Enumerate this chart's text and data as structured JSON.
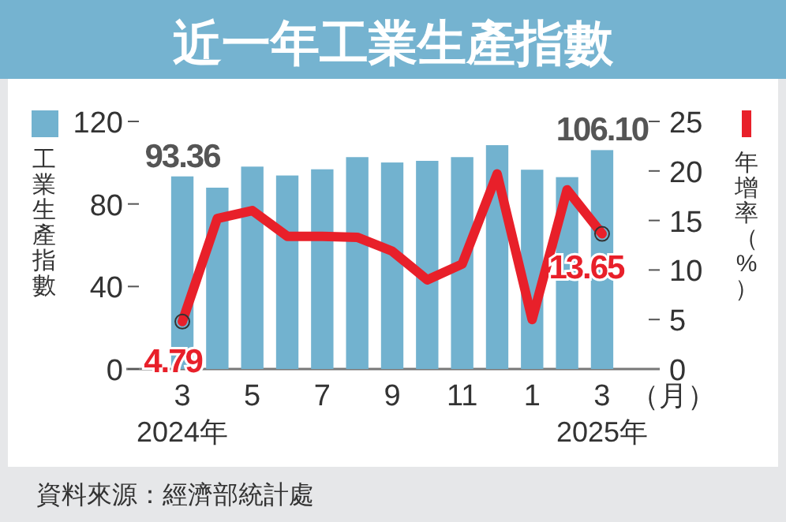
{
  "chart_data": {
    "type": "bar",
    "title": "近一年工業生產指數",
    "categories": [
      "3",
      null,
      "5",
      null,
      "7",
      null,
      "9",
      null,
      "11",
      null,
      "1",
      null,
      "3"
    ],
    "series": [
      {
        "color": "#72b2cf",
        "values": [
          93.36,
          87.9,
          98.1,
          93.8,
          96.8,
          102.7,
          100.1,
          100.9,
          102.7,
          108.5,
          96.6,
          93.0,
          106.1
        ],
        "value_labels": [
          "93.36",
          null,
          null,
          null,
          null,
          null,
          null,
          null,
          null,
          null,
          null,
          null,
          "106.10"
        ]
      },
      {
        "type": "line",
        "axis": "y2",
        "color": "#e8202a",
        "values": [
          4.79,
          15.2,
          16.0,
          13.4,
          13.4,
          13.3,
          11.9,
          9.0,
          10.6,
          19.7,
          5.0,
          18.1,
          13.65
        ],
        "value_labels": [
          "4.79",
          null,
          null,
          null,
          null,
          null,
          null,
          null,
          null,
          null,
          null,
          null,
          "13.65"
        ]
      }
    ],
    "ylabel": "工業生產指數",
    "y2label": "年增率（%）",
    "xlabel": "（月）",
    "ylim": [
      0,
      120
    ],
    "yticks": [
      0,
      40,
      80,
      120
    ],
    "y2lim": [
      0,
      25
    ],
    "y2ticks": [
      0,
      5,
      10,
      15,
      20,
      25
    ],
    "marker": "none",
    "line_style": "solid",
    "annotations": [
      "2024年",
      "2025年",
      "資料來源：經濟部統計處"
    ]
  }
}
